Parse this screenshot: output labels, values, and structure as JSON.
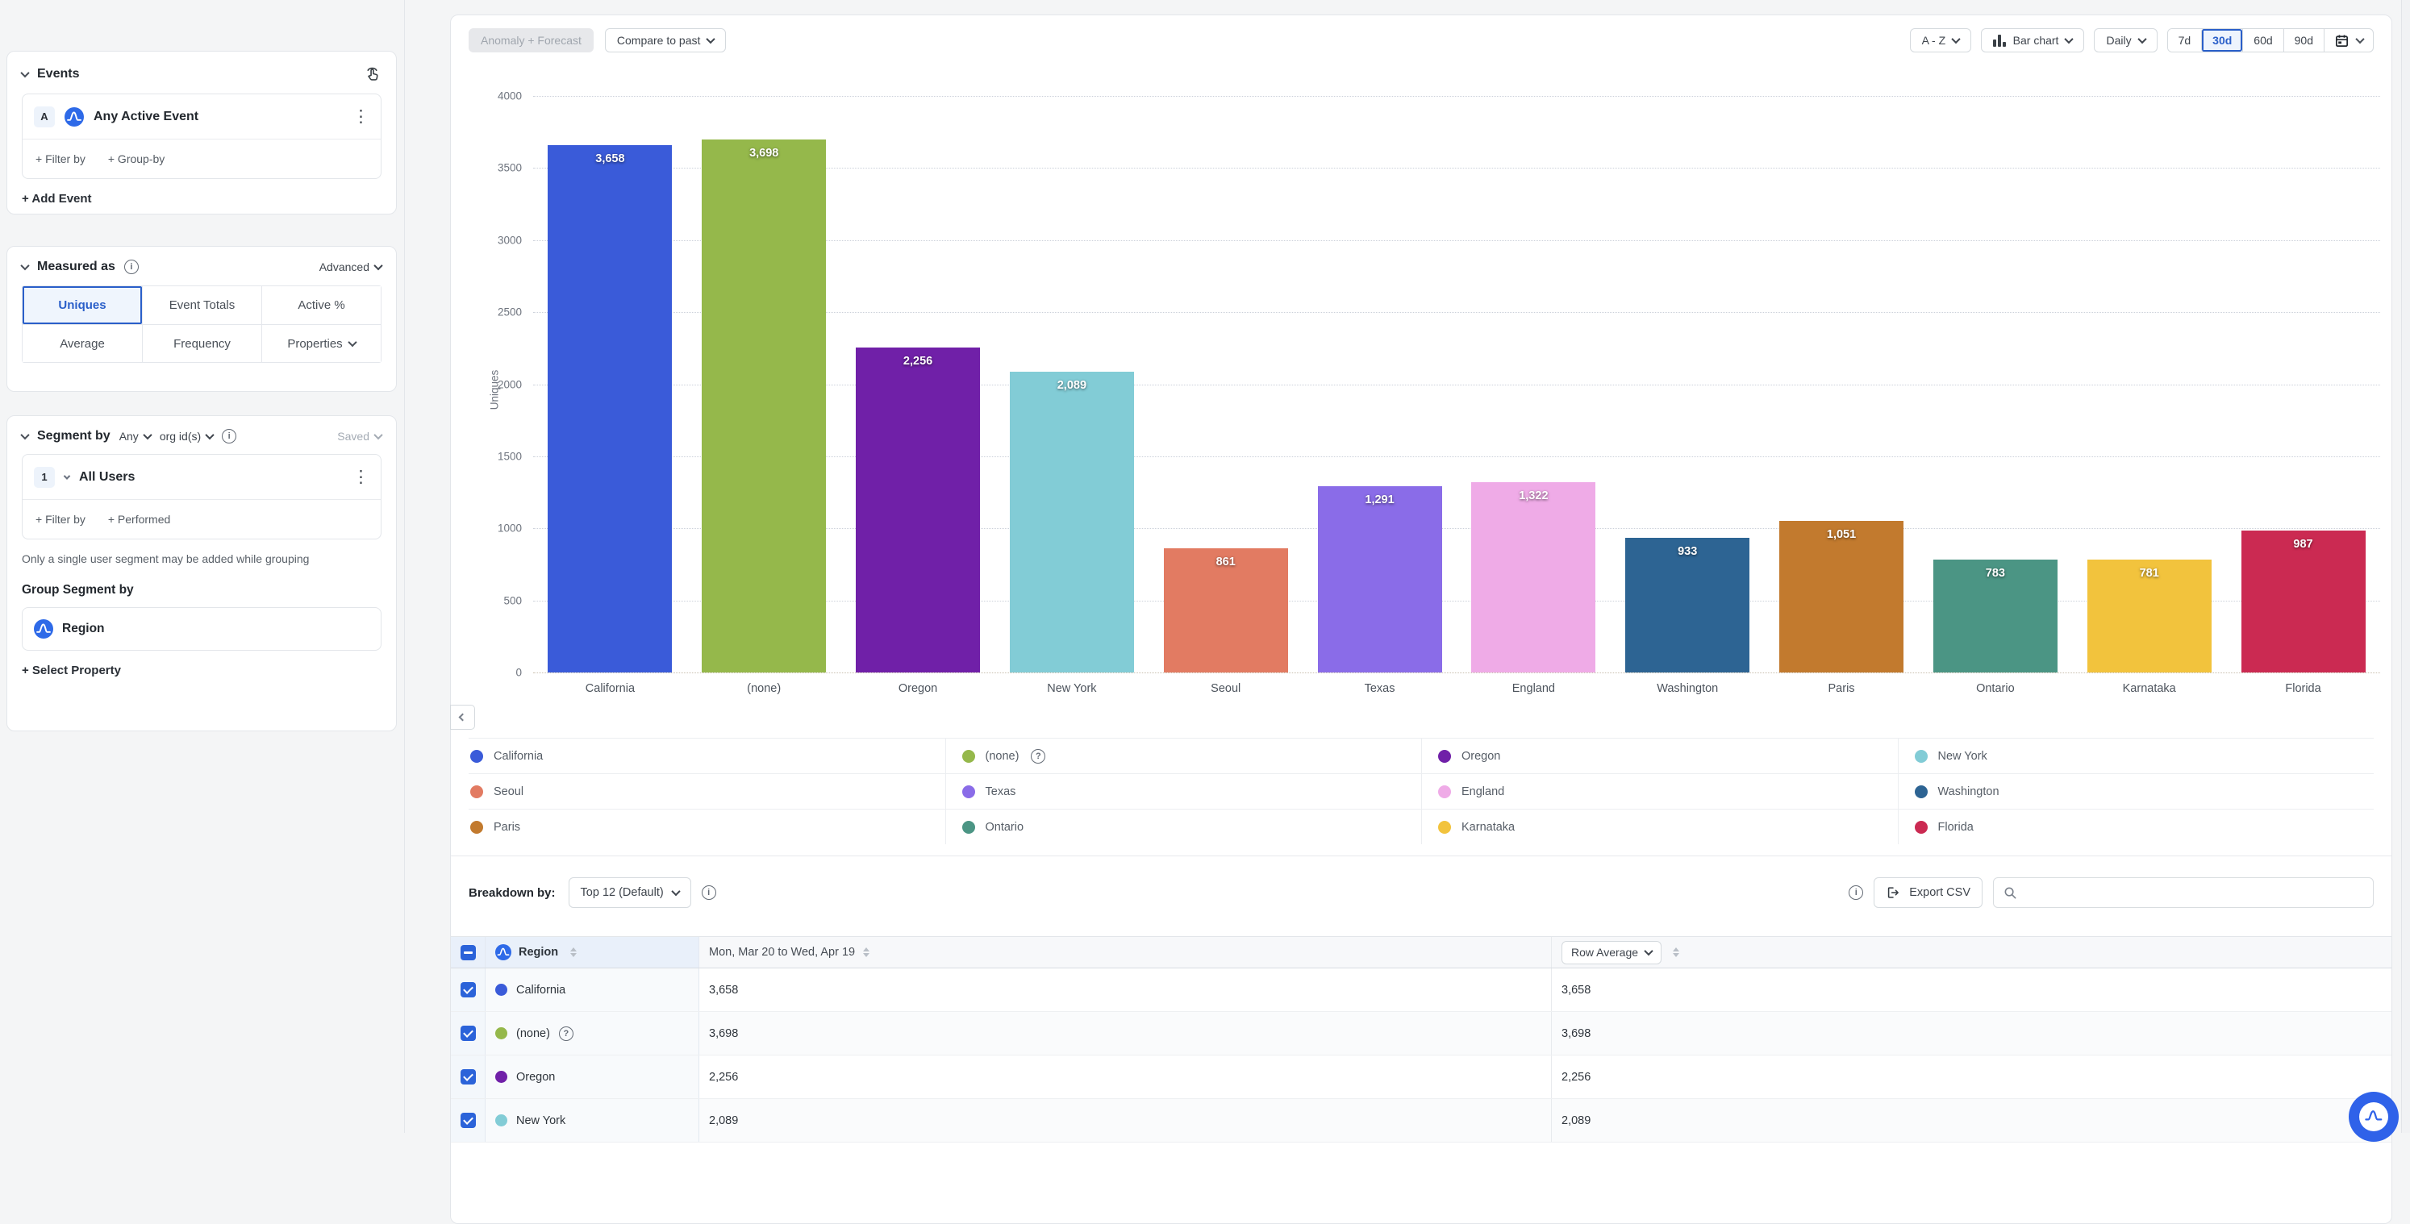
{
  "colors": {
    "accent": "#2a5fc9",
    "brand_blue": "#2e6ae8",
    "checkbox_blue": "#2b63d9"
  },
  "sidebar": {
    "events": {
      "title": "Events",
      "item": {
        "badge": "A",
        "label": "Any Active Event"
      },
      "filter_label": "+ Filter by",
      "groupby_label": "+ Group-by",
      "add_label": "+ Add Event"
    },
    "measured": {
      "title": "Measured as",
      "advanced_label": "Advanced",
      "selected": "Uniques",
      "options": [
        "Uniques",
        "Event Totals",
        "Active %",
        "Average",
        "Frequency",
        "Properties"
      ]
    },
    "segment": {
      "title": "Segment by",
      "any_label": "Any",
      "prop_label": "org id(s)",
      "saved_label": "Saved",
      "item": {
        "badge": "1",
        "label": "All Users"
      },
      "filter_label": "+ Filter by",
      "performed_label": "+ Performed",
      "note": "Only a single user segment may be added while grouping",
      "group_title": "Group Segment by",
      "group_property": "Region",
      "select_property_label": "+ Select Property"
    }
  },
  "toolbar": {
    "anomaly_label": "Anomaly + Forecast",
    "compare_label": "Compare to past",
    "sort_label": "A - Z",
    "chart_type_label": "Bar chart",
    "interval_label": "Daily",
    "ranges": [
      "7d",
      "30d",
      "60d",
      "90d"
    ],
    "selected_range": "30d"
  },
  "chart_data": {
    "type": "bar",
    "title": "",
    "xlabel": "",
    "ylabel": "Uniques",
    "ylim": [
      0,
      4000
    ],
    "yticks": [
      0,
      500,
      1000,
      1500,
      2000,
      2500,
      3000,
      3500,
      4000
    ],
    "grid": "horizontal-dotted",
    "legend_position": "bottom",
    "legend_help_item": "(none)",
    "categories": [
      "California",
      "(none)",
      "Oregon",
      "New York",
      "Seoul",
      "Texas",
      "England",
      "Washington",
      "Paris",
      "Ontario",
      "Karnataka",
      "Florida"
    ],
    "values": [
      3658,
      3698,
      2256,
      2089,
      861,
      1291,
      1322,
      933,
      1051,
      783,
      781,
      987
    ],
    "value_labels": [
      "3,658",
      "3,698",
      "2,256",
      "2,089",
      "861",
      "1,291",
      "1,322",
      "933",
      "1,051",
      "783",
      "781",
      "987"
    ],
    "colors": [
      "#3a5bd9",
      "#95b84b",
      "#7020a8",
      "#82ccd6",
      "#e27b62",
      "#8a6ce8",
      "#efabe7",
      "#2d6493",
      "#c27a2e",
      "#4b9584",
      "#f2c33d",
      "#cb2a52"
    ]
  },
  "breakdown": {
    "label": "Breakdown by:",
    "top_dropdown": "Top 12 (Default)",
    "export_label": "Export CSV",
    "table": {
      "region_header": "Region",
      "date_header": "Mon, Mar 20 to Wed, Apr 19",
      "avg_header": "Row Average",
      "rows": [
        {
          "name": "California",
          "color": "#3a5bd9",
          "value": "3,658",
          "avg": "3,658",
          "checked": true,
          "help": false
        },
        {
          "name": "(none)",
          "color": "#95b84b",
          "value": "3,698",
          "avg": "3,698",
          "checked": true,
          "help": true
        },
        {
          "name": "Oregon",
          "color": "#7020a8",
          "value": "2,256",
          "avg": "2,256",
          "checked": true,
          "help": false
        },
        {
          "name": "New York",
          "color": "#82ccd6",
          "value": "2,089",
          "avg": "2,089",
          "checked": true,
          "help": false
        }
      ]
    }
  }
}
